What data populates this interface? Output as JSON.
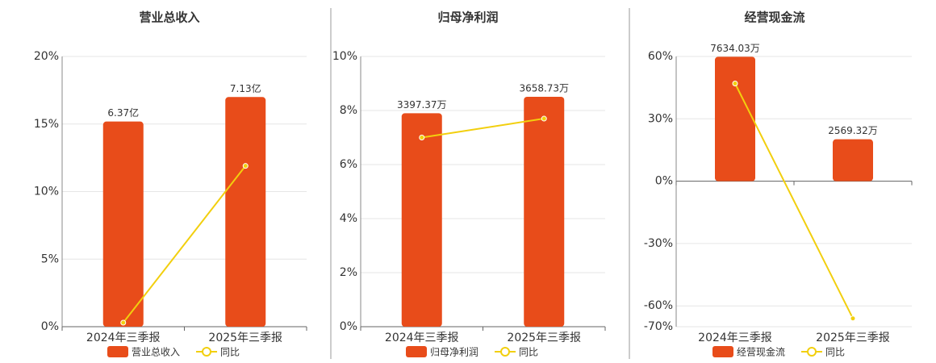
{
  "chart_data": [
    {
      "type": "bar",
      "title": "营业总收入",
      "categories": [
        "2024年三季报",
        "2025年三季报"
      ],
      "series": [
        {
          "name": "营业总收入",
          "color": "#e84c1a",
          "values": [
            6.37,
            7.13
          ],
          "value_labels": [
            "6.37亿",
            "7.13亿"
          ],
          "axis": "y2"
        },
        {
          "name": "同比",
          "color": "#f2cf0e",
          "type": "line",
          "values": [
            0.3,
            11.9
          ]
        }
      ],
      "ylim": [
        0,
        20
      ],
      "yticks": [
        {
          "value": 0,
          "label": "0%"
        },
        {
          "value": 5,
          "label": "5%"
        },
        {
          "value": 10,
          "label": "10%"
        },
        {
          "value": 15,
          "label": "15%"
        },
        {
          "value": 20,
          "label": "20%"
        }
      ],
      "y2lim": [
        0,
        8.39
      ],
      "grid": true
    },
    {
      "type": "bar",
      "title": "归母净利润",
      "categories": [
        "2024年三季报",
        "2025年三季报"
      ],
      "series": [
        {
          "name": "归母净利润",
          "color": "#e84c1a",
          "values": [
            3397.37,
            3658.73
          ],
          "value_labels": [
            "3397.37万",
            "3658.73万"
          ],
          "axis": "y2"
        },
        {
          "name": "同比",
          "color": "#f2cf0e",
          "type": "line",
          "values": [
            7.0,
            7.7
          ]
        }
      ],
      "ylim": [
        0,
        10
      ],
      "yticks": [
        {
          "value": 0,
          "label": "0%"
        },
        {
          "value": 2,
          "label": "2%"
        },
        {
          "value": 4,
          "label": "4%"
        },
        {
          "value": 6,
          "label": "6%"
        },
        {
          "value": 8,
          "label": "8%"
        },
        {
          "value": 10,
          "label": "10%"
        }
      ],
      "y2lim": [
        0,
        4300
      ],
      "grid": true
    },
    {
      "type": "bar",
      "title": "经营现金流",
      "categories": [
        "2024年三季报",
        "2025年三季报"
      ],
      "series": [
        {
          "name": "经营现金流",
          "color": "#e84c1a",
          "values": [
            7634.03,
            2569.32
          ],
          "value_labels": [
            "7634.03万",
            "2569.32万"
          ],
          "axis": "y2"
        },
        {
          "name": "同比",
          "color": "#f2cf0e",
          "type": "line",
          "values": [
            47,
            -66
          ]
        }
      ],
      "ylim": [
        -70,
        60
      ],
      "yticks": [
        {
          "value": -70,
          "label": "-70%"
        },
        {
          "value": -60,
          "label": "-60%"
        },
        {
          "value": -30,
          "label": "-30%"
        },
        {
          "value": 0,
          "label": "0%"
        },
        {
          "value": 30,
          "label": "30%"
        },
        {
          "value": 60,
          "label": "60%"
        }
      ],
      "y2lim": [
        -8925,
        7650
      ],
      "grid": true
    }
  ]
}
